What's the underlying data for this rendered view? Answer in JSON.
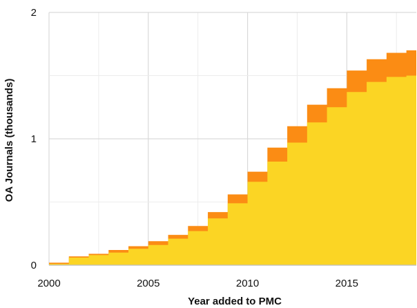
{
  "chart_data": {
    "type": "area",
    "title": "",
    "xlabel": "Year added to PMC",
    "ylabel": "OA Journals (thousands)",
    "xlim": [
      2000,
      2018.5
    ],
    "ylim": [
      0,
      2
    ],
    "x_ticks": [
      2000,
      2005,
      2010,
      2015
    ],
    "y_ticks": [
      0,
      1,
      2
    ],
    "grid": true,
    "legend": "none",
    "step": true,
    "x": [
      2000,
      2001,
      2002,
      2003,
      2004,
      2005,
      2006,
      2007,
      2008,
      2009,
      2010,
      2011,
      2012,
      2013,
      2014,
      2015,
      2016,
      2017,
      2018
    ],
    "series": [
      {
        "color": "#fbd524",
        "values": [
          0.01,
          0.06,
          0.08,
          0.1,
          0.13,
          0.16,
          0.21,
          0.27,
          0.37,
          0.49,
          0.66,
          0.82,
          0.97,
          1.13,
          1.25,
          1.37,
          1.45,
          1.49,
          1.5
        ]
      },
      {
        "color": "#fb8c14",
        "values": [
          0.02,
          0.07,
          0.09,
          0.12,
          0.15,
          0.19,
          0.24,
          0.31,
          0.42,
          0.56,
          0.74,
          0.93,
          1.1,
          1.27,
          1.4,
          1.54,
          1.63,
          1.68,
          1.7
        ]
      }
    ]
  }
}
